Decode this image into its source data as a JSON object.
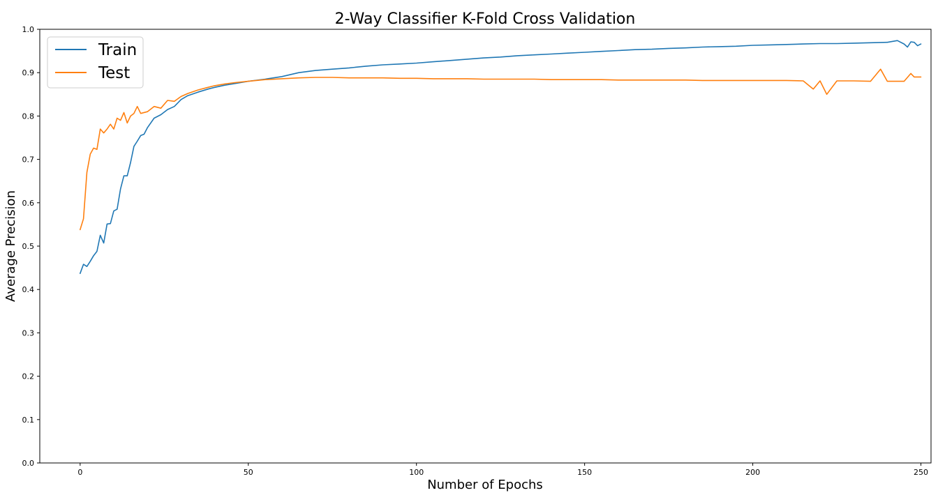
{
  "chart_data": {
    "type": "line",
    "title": "2-Way Classifier K-Fold Cross Validation",
    "xlabel": "Number of Epochs",
    "ylabel": "Average Precision",
    "xlim": [
      -12,
      253
    ],
    "ylim": [
      0.0,
      1.0
    ],
    "xticks": [
      0,
      50,
      100,
      150,
      200,
      250
    ],
    "yticks": [
      0.0,
      0.1,
      0.2,
      0.3,
      0.4,
      0.5,
      0.6,
      0.7,
      0.8,
      0.9,
      1.0
    ],
    "xtick_labels": [
      "0",
      "50",
      "100",
      "150",
      "200",
      "250"
    ],
    "ytick_labels": [
      "0.0",
      "0.1",
      "0.2",
      "0.3",
      "0.4",
      "0.5",
      "0.6",
      "0.7",
      "0.8",
      "0.9",
      "1.0"
    ],
    "grid": false,
    "legend_position": "top-left",
    "series": [
      {
        "name": "Train",
        "color": "#1f77b4",
        "points": [
          [
            0,
            0.437
          ],
          [
            1,
            0.458
          ],
          [
            2,
            0.453
          ],
          [
            3,
            0.465
          ],
          [
            4,
            0.478
          ],
          [
            5,
            0.488
          ],
          [
            6,
            0.525
          ],
          [
            7,
            0.507
          ],
          [
            8,
            0.551
          ],
          [
            9,
            0.552
          ],
          [
            10,
            0.581
          ],
          [
            11,
            0.585
          ],
          [
            12,
            0.632
          ],
          [
            13,
            0.662
          ],
          [
            14,
            0.662
          ],
          [
            15,
            0.693
          ],
          [
            16,
            0.73
          ],
          [
            17,
            0.742
          ],
          [
            18,
            0.755
          ],
          [
            19,
            0.758
          ],
          [
            20,
            0.773
          ],
          [
            22,
            0.795
          ],
          [
            24,
            0.803
          ],
          [
            26,
            0.815
          ],
          [
            28,
            0.822
          ],
          [
            30,
            0.838
          ],
          [
            32,
            0.847
          ],
          [
            35,
            0.855
          ],
          [
            38,
            0.862
          ],
          [
            40,
            0.866
          ],
          [
            43,
            0.871
          ],
          [
            46,
            0.875
          ],
          [
            50,
            0.88
          ],
          [
            55,
            0.885
          ],
          [
            60,
            0.891
          ],
          [
            65,
            0.9
          ],
          [
            70,
            0.905
          ],
          [
            75,
            0.908
          ],
          [
            80,
            0.911
          ],
          [
            85,
            0.915
          ],
          [
            90,
            0.918
          ],
          [
            95,
            0.92
          ],
          [
            100,
            0.922
          ],
          [
            105,
            0.925
          ],
          [
            110,
            0.928
          ],
          [
            115,
            0.931
          ],
          [
            120,
            0.934
          ],
          [
            125,
            0.936
          ],
          [
            130,
            0.939
          ],
          [
            135,
            0.941
          ],
          [
            140,
            0.943
          ],
          [
            145,
            0.945
          ],
          [
            150,
            0.947
          ],
          [
            155,
            0.949
          ],
          [
            160,
            0.951
          ],
          [
            165,
            0.953
          ],
          [
            170,
            0.954
          ],
          [
            175,
            0.956
          ],
          [
            180,
            0.957
          ],
          [
            185,
            0.959
          ],
          [
            190,
            0.96
          ],
          [
            195,
            0.961
          ],
          [
            200,
            0.963
          ],
          [
            205,
            0.964
          ],
          [
            210,
            0.965
          ],
          [
            215,
            0.966
          ],
          [
            220,
            0.967
          ],
          [
            225,
            0.967
          ],
          [
            230,
            0.968
          ],
          [
            235,
            0.969
          ],
          [
            240,
            0.97
          ],
          [
            243,
            0.974
          ],
          [
            245,
            0.966
          ],
          [
            246,
            0.959
          ],
          [
            247,
            0.971
          ],
          [
            248,
            0.97
          ],
          [
            249,
            0.962
          ],
          [
            250,
            0.966
          ]
        ]
      },
      {
        "name": "Test",
        "color": "#ff7f0e",
        "points": [
          [
            0,
            0.538
          ],
          [
            1,
            0.563
          ],
          [
            2,
            0.67
          ],
          [
            3,
            0.712
          ],
          [
            4,
            0.726
          ],
          [
            5,
            0.723
          ],
          [
            6,
            0.77
          ],
          [
            7,
            0.761
          ],
          [
            8,
            0.77
          ],
          [
            9,
            0.781
          ],
          [
            10,
            0.77
          ],
          [
            11,
            0.795
          ],
          [
            12,
            0.79
          ],
          [
            13,
            0.808
          ],
          [
            14,
            0.784
          ],
          [
            15,
            0.8
          ],
          [
            16,
            0.806
          ],
          [
            17,
            0.822
          ],
          [
            18,
            0.806
          ],
          [
            20,
            0.81
          ],
          [
            22,
            0.822
          ],
          [
            24,
            0.818
          ],
          [
            26,
            0.836
          ],
          [
            28,
            0.834
          ],
          [
            30,
            0.845
          ],
          [
            32,
            0.852
          ],
          [
            35,
            0.86
          ],
          [
            38,
            0.866
          ],
          [
            40,
            0.87
          ],
          [
            43,
            0.874
          ],
          [
            46,
            0.877
          ],
          [
            50,
            0.88
          ],
          [
            55,
            0.884
          ],
          [
            60,
            0.886
          ],
          [
            65,
            0.888
          ],
          [
            70,
            0.889
          ],
          [
            75,
            0.889
          ],
          [
            80,
            0.888
          ],
          [
            85,
            0.888
          ],
          [
            90,
            0.888
          ],
          [
            95,
            0.887
          ],
          [
            100,
            0.887
          ],
          [
            105,
            0.886
          ],
          [
            110,
            0.886
          ],
          [
            115,
            0.886
          ],
          [
            120,
            0.885
          ],
          [
            125,
            0.885
          ],
          [
            130,
            0.885
          ],
          [
            135,
            0.885
          ],
          [
            140,
            0.884
          ],
          [
            145,
            0.884
          ],
          [
            150,
            0.884
          ],
          [
            155,
            0.884
          ],
          [
            160,
            0.883
          ],
          [
            165,
            0.883
          ],
          [
            170,
            0.883
          ],
          [
            175,
            0.883
          ],
          [
            180,
            0.883
          ],
          [
            185,
            0.882
          ],
          [
            190,
            0.882
          ],
          [
            195,
            0.882
          ],
          [
            200,
            0.882
          ],
          [
            205,
            0.882
          ],
          [
            210,
            0.882
          ],
          [
            215,
            0.881
          ],
          [
            218,
            0.862
          ],
          [
            220,
            0.881
          ],
          [
            222,
            0.85
          ],
          [
            225,
            0.881
          ],
          [
            230,
            0.881
          ],
          [
            235,
            0.88
          ],
          [
            238,
            0.908
          ],
          [
            240,
            0.88
          ],
          [
            245,
            0.88
          ],
          [
            247,
            0.898
          ],
          [
            248,
            0.89
          ],
          [
            250,
            0.89
          ]
        ]
      }
    ]
  }
}
